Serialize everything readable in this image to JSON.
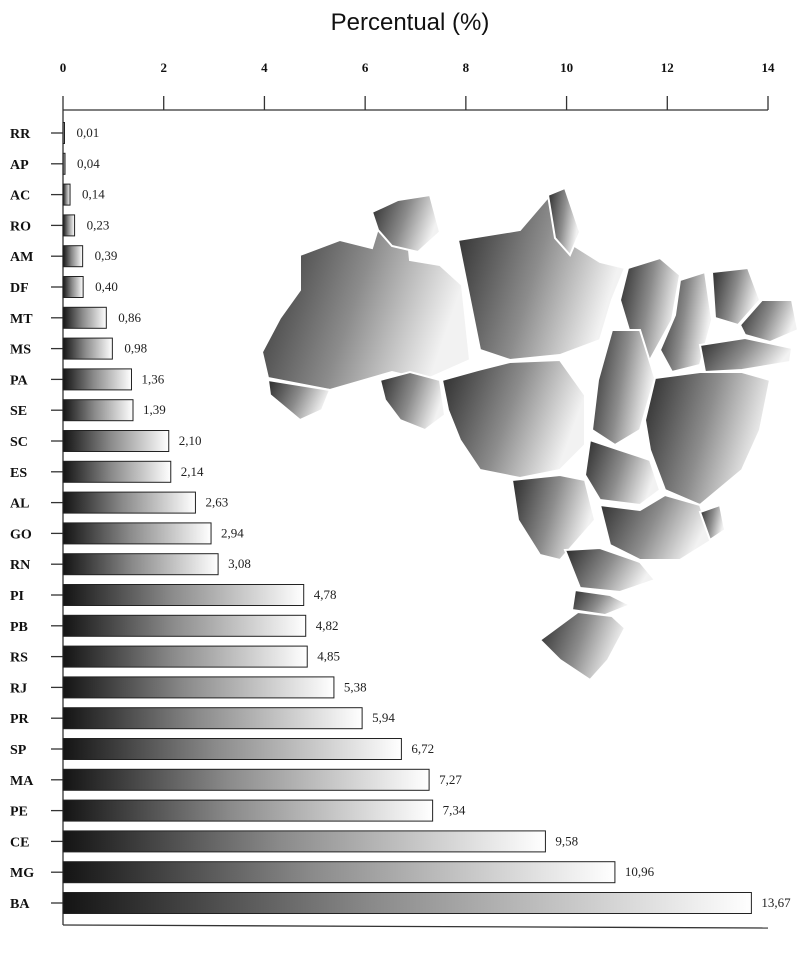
{
  "chart_data": {
    "type": "bar",
    "orientation": "horizontal",
    "title": "Percentual (%)",
    "xlim": [
      0,
      14
    ],
    "x_ticks": [
      "0",
      "2",
      "4",
      "6",
      "8",
      "10",
      "12",
      "14"
    ],
    "categories": [
      "RR",
      "AP",
      "AC",
      "RO",
      "AM",
      "DF",
      "MT",
      "MS",
      "PA",
      "SE",
      "SC",
      "ES",
      "AL",
      "GO",
      "RN",
      "PI",
      "PB",
      "RS",
      "RJ",
      "PR",
      "SP",
      "MA",
      "PE",
      "CE",
      "MG",
      "BA"
    ],
    "values": [
      0.01,
      0.04,
      0.14,
      0.23,
      0.39,
      0.4,
      0.86,
      0.98,
      1.36,
      1.39,
      2.1,
      2.14,
      2.63,
      2.94,
      3.08,
      4.78,
      4.82,
      4.85,
      5.38,
      5.94,
      6.72,
      7.27,
      7.34,
      9.58,
      10.96,
      13.67
    ],
    "value_labels": [
      "0,01",
      "0,04",
      "0,14",
      "0,23",
      "0,39",
      "0,40",
      "0,86",
      "0,98",
      "1,36",
      "1,39",
      "2,10",
      "2,14",
      "2,63",
      "2,94",
      "3,08",
      "4,78",
      "4,82",
      "4,85",
      "5,38",
      "5,94",
      "6,72",
      "7,27",
      "7,34",
      "9,58",
      "10,96",
      "13,67"
    ],
    "axis_position": "top",
    "grid": false,
    "decoration": "map of Brazil (states) as background illustration",
    "colors": {
      "bar_dark": "#1a1a1a",
      "bar_light": "#ffffff",
      "map_dark": "#2a2a2a",
      "map_light": "#f4f4f4"
    }
  }
}
